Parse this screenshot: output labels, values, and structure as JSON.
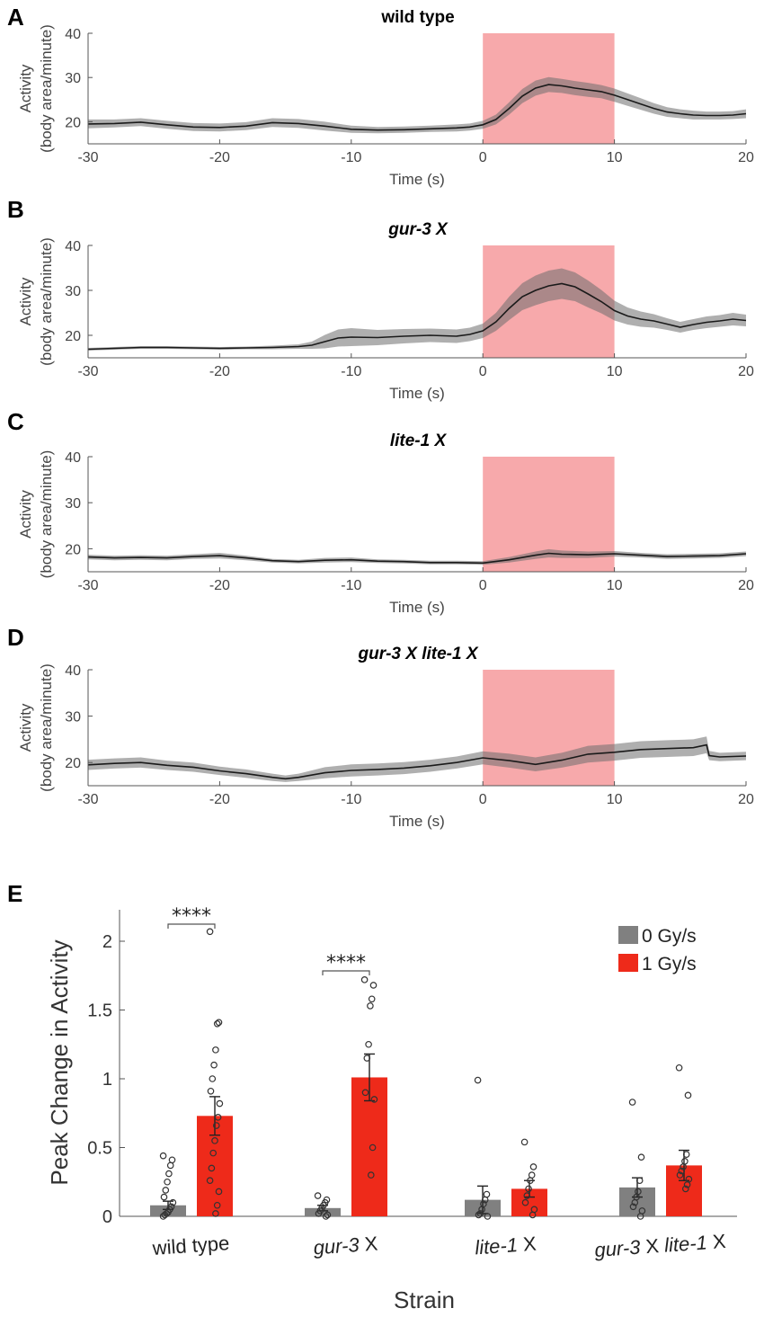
{
  "chart_data": [
    {
      "panel": "A",
      "type": "line",
      "title": "wild type",
      "title_italic": false,
      "xlabel": "Time (s)",
      "ylabel_line1": "Activity",
      "ylabel_line2": "(body area/minute)",
      "xlim": [
        -30,
        20
      ],
      "ylim": [
        15,
        40
      ],
      "xticks": [
        -30,
        -20,
        -10,
        0,
        10,
        20
      ],
      "yticks": [
        20,
        30,
        40
      ],
      "stimulus_window": [
        0,
        10
      ],
      "stimulus_color": "#f7a9ab",
      "series": [
        {
          "name": "mean activity",
          "x": [
            -30,
            -28,
            -26,
            -24,
            -22,
            -20,
            -18,
            -16,
            -14,
            -12,
            -10,
            -8,
            -6,
            -4,
            -2,
            -1,
            0,
            1,
            2,
            3,
            4,
            5,
            6,
            7,
            8,
            9,
            10,
            11,
            12,
            13,
            14,
            15,
            16,
            17,
            18,
            19,
            20
          ],
          "y": [
            19.5,
            19.6,
            19.9,
            19.3,
            18.8,
            18.7,
            19.0,
            19.8,
            19.6,
            19.0,
            18.3,
            18.1,
            18.2,
            18.4,
            18.6,
            18.8,
            19.3,
            20.5,
            23.0,
            25.8,
            27.6,
            28.4,
            28.1,
            27.6,
            27.2,
            26.8,
            26.0,
            25.0,
            24.0,
            23.0,
            22.2,
            21.8,
            21.5,
            21.4,
            21.4,
            21.5,
            21.8
          ],
          "sem": [
            1.0,
            0.9,
            0.9,
            0.9,
            0.9,
            0.9,
            0.9,
            1.0,
            1.0,
            1.0,
            0.8,
            0.7,
            0.7,
            0.7,
            0.8,
            0.8,
            0.9,
            1.1,
            1.4,
            1.6,
            1.7,
            1.7,
            1.6,
            1.6,
            1.6,
            1.5,
            1.5,
            1.4,
            1.3,
            1.2,
            1.1,
            1.0,
            1.0,
            0.9,
            0.9,
            0.9,
            1.0
          ]
        }
      ]
    },
    {
      "panel": "B",
      "type": "line",
      "title": "gur-3 X",
      "title_italic": true,
      "xlabel": "Time (s)",
      "ylabel_line1": "Activity",
      "ylabel_line2": "(body area/minute)",
      "xlim": [
        -30,
        20
      ],
      "ylim": [
        15,
        40
      ],
      "xticks": [
        -30,
        -20,
        -10,
        0,
        10,
        20
      ],
      "yticks": [
        20,
        30,
        40
      ],
      "stimulus_window": [
        0,
        10
      ],
      "stimulus_color": "#f7a9ab",
      "series": [
        {
          "name": "mean activity",
          "x": [
            -30,
            -28,
            -26,
            -24,
            -22,
            -20,
            -18,
            -16,
            -14,
            -13,
            -12,
            -11,
            -10,
            -8,
            -6,
            -4,
            -2,
            -1,
            0,
            1,
            2,
            3,
            4,
            5,
            6,
            7,
            8,
            9,
            10,
            11,
            12,
            13,
            14,
            15,
            16,
            17,
            18,
            19,
            20
          ],
          "y": [
            16.9,
            17.1,
            17.3,
            17.3,
            17.2,
            17.1,
            17.2,
            17.3,
            17.5,
            17.8,
            18.6,
            19.4,
            19.6,
            19.5,
            19.8,
            20.0,
            19.8,
            20.2,
            21.0,
            23.0,
            26.0,
            28.6,
            30.0,
            31.0,
            31.5,
            30.8,
            29.2,
            27.5,
            25.5,
            24.3,
            23.6,
            23.2,
            22.5,
            21.8,
            22.4,
            22.9,
            23.2,
            23.6,
            23.3
          ],
          "sem": [
            0.3,
            0.3,
            0.3,
            0.3,
            0.3,
            0.3,
            0.3,
            0.4,
            0.5,
            0.8,
            1.5,
            1.9,
            2.0,
            1.7,
            1.6,
            1.5,
            1.5,
            1.5,
            1.6,
            2.0,
            2.6,
            3.0,
            3.3,
            3.4,
            3.4,
            3.2,
            3.0,
            2.6,
            2.2,
            1.9,
            1.7,
            1.5,
            1.3,
            1.2,
            1.2,
            1.3,
            1.3,
            1.4,
            1.3
          ]
        }
      ]
    },
    {
      "panel": "C",
      "type": "line",
      "title": "lite-1 X",
      "title_italic": true,
      "xlabel": "Time (s)",
      "ylabel_line1": "Activity",
      "ylabel_line2": "(body area/minute)",
      "xlim": [
        -30,
        20
      ],
      "ylim": [
        15,
        40
      ],
      "xticks": [
        -30,
        -20,
        -10,
        0,
        10,
        20
      ],
      "yticks": [
        20,
        30,
        40
      ],
      "stimulus_window": [
        0,
        10
      ],
      "stimulus_color": "#f7a9ab",
      "series": [
        {
          "name": "mean activity",
          "x": [
            -30,
            -28,
            -26,
            -24,
            -22,
            -20,
            -18,
            -16,
            -14,
            -12,
            -10,
            -8,
            -6,
            -4,
            -2,
            0,
            2,
            4,
            5,
            6,
            8,
            10,
            12,
            14,
            16,
            18,
            20
          ],
          "y": [
            18.2,
            18.0,
            18.1,
            18.0,
            18.3,
            18.5,
            18.0,
            17.4,
            17.2,
            17.5,
            17.6,
            17.3,
            17.2,
            17.0,
            17.0,
            16.9,
            17.6,
            18.6,
            19.0,
            18.8,
            18.7,
            18.9,
            18.6,
            18.3,
            18.4,
            18.5,
            18.9
          ],
          "sem": [
            0.5,
            0.5,
            0.5,
            0.5,
            0.5,
            0.6,
            0.5,
            0.4,
            0.4,
            0.5,
            0.5,
            0.4,
            0.4,
            0.4,
            0.4,
            0.4,
            0.6,
            0.8,
            0.9,
            0.8,
            0.7,
            0.6,
            0.5,
            0.5,
            0.5,
            0.5,
            0.5
          ]
        }
      ]
    },
    {
      "panel": "D",
      "type": "line",
      "title": "gur-3 X lite-1 X",
      "title_italic": true,
      "xlabel": "Time (s)",
      "ylabel_line1": "Activity",
      "ylabel_line2": "(body area/minute)",
      "xlim": [
        -30,
        20
      ],
      "ylim": [
        15,
        40
      ],
      "xticks": [
        -30,
        -20,
        -10,
        0,
        10,
        20
      ],
      "yticks": [
        20,
        30,
        40
      ],
      "stimulus_window": [
        0,
        10
      ],
      "stimulus_color": "#f7a9ab",
      "series": [
        {
          "name": "mean activity",
          "x": [
            -30,
            -28,
            -26,
            -24,
            -22,
            -20,
            -18,
            -16,
            -15,
            -14,
            -12,
            -10,
            -8,
            -6,
            -4,
            -2,
            0,
            2,
            4,
            6,
            8,
            10,
            12,
            14,
            16,
            17,
            17.2,
            18,
            20
          ],
          "y": [
            19.5,
            19.8,
            20.0,
            19.4,
            19.0,
            18.2,
            17.6,
            16.8,
            16.5,
            16.8,
            17.8,
            18.3,
            18.5,
            18.8,
            19.3,
            20.0,
            21.0,
            20.4,
            19.6,
            20.5,
            21.8,
            22.2,
            22.8,
            23.0,
            23.2,
            23.8,
            21.5,
            21.2,
            21.4
          ],
          "sem": [
            1.1,
            1.1,
            1.1,
            1.0,
            1.0,
            0.9,
            0.9,
            0.8,
            0.7,
            0.8,
            1.2,
            1.3,
            1.3,
            1.3,
            1.3,
            1.3,
            1.4,
            1.5,
            1.5,
            1.6,
            1.8,
            1.8,
            1.8,
            1.8,
            1.8,
            1.8,
            1.0,
            0.9,
            0.9
          ]
        }
      ]
    },
    {
      "panel": "E",
      "type": "bar",
      "xlabel": "Strain",
      "ylabel": "Peak Change in Activity",
      "ylim": [
        0,
        2.2
      ],
      "yticks": [
        "0",
        "0.5",
        "1",
        "1.5",
        "2"
      ],
      "categories": [
        {
          "italic": "",
          "plain": "wild type"
        },
        {
          "italic": "gur-3",
          "plain": " X"
        },
        {
          "italic": "lite-1",
          "plain": " X"
        },
        {
          "italic": "gur-3",
          "plain": " X ",
          "italic2": "lite-1",
          "plain2": " X"
        }
      ],
      "series": [
        {
          "name": "0 Gy/s",
          "color": "#808080",
          "values": [
            0.08,
            0.06,
            0.12,
            0.21
          ],
          "errors": [
            0.03,
            0.02,
            0.1,
            0.07
          ],
          "points": [
            [
              0.44,
              0.41,
              0.37,
              0.31,
              0.25,
              0.19,
              0.14,
              0.1,
              0.07,
              0.05,
              0.03,
              0.02,
              0.01,
              0.0
            ],
            [
              0.15,
              0.12,
              0.1,
              0.08,
              0.06,
              0.04,
              0.02,
              0.01,
              0.0
            ],
            [
              0.99,
              0.16,
              0.12,
              0.09,
              0.05,
              0.02,
              0.01,
              0.0
            ],
            [
              0.83,
              0.43,
              0.26,
              0.18,
              0.14,
              0.1,
              0.07,
              0.04,
              0.0
            ]
          ]
        },
        {
          "name": "1 Gy/s",
          "color": "#ee2a1a",
          "values": [
            0.73,
            1.01,
            0.2,
            0.37
          ],
          "errors": [
            0.14,
            0.17,
            0.06,
            0.11
          ],
          "points": [
            [
              2.07,
              1.41,
              1.4,
              1.21,
              1.1,
              1.0,
              0.91,
              0.82,
              0.72,
              0.66,
              0.55,
              0.46,
              0.35,
              0.26,
              0.18,
              0.08,
              0.02
            ],
            [
              1.72,
              1.68,
              1.58,
              1.53,
              1.25,
              1.15,
              0.9,
              0.85,
              0.5,
              0.3
            ],
            [
              0.54,
              0.36,
              0.3,
              0.26,
              0.2,
              0.15,
              0.1,
              0.05,
              0.01
            ],
            [
              1.08,
              0.88,
              0.45,
              0.4,
              0.36,
              0.33,
              0.3,
              0.27,
              0.23,
              0.2
            ]
          ]
        }
      ],
      "significance": [
        {
          "category_index": 0,
          "label": "****"
        },
        {
          "category_index": 1,
          "label": "****"
        }
      ]
    }
  ]
}
